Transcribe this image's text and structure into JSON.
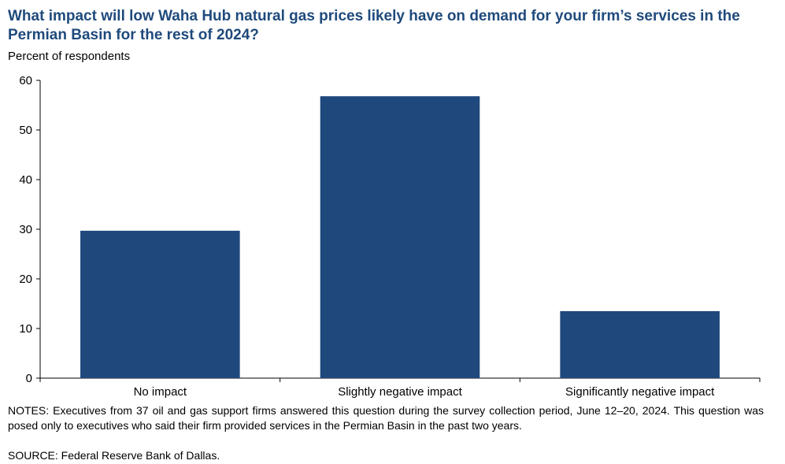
{
  "chart_data": {
    "type": "bar",
    "title": "What impact will low Waha Hub natural gas prices likely have on demand for your firm’s services in the Permian Basin for the rest of 2024?",
    "ylabel": "Percent of respondents",
    "xlabel": "",
    "categories": [
      "No impact",
      "Slightly negative impact",
      "Significantly negative impact"
    ],
    "values": [
      29.7,
      56.8,
      13.5
    ],
    "ylim": [
      0,
      60
    ],
    "yticks": [
      0,
      10,
      20,
      30,
      40,
      50,
      60
    ],
    "bar_color": "#1f497d",
    "grid": false
  },
  "notes": "NOTES: Executives from 37 oil and gas support firms answered this question during the survey collection period, June 12–20, 2024. This question was posed only to executives who said their firm provided services in the Permian Basin in the past two years.",
  "source": "SOURCE: Federal Reserve Bank of Dallas."
}
